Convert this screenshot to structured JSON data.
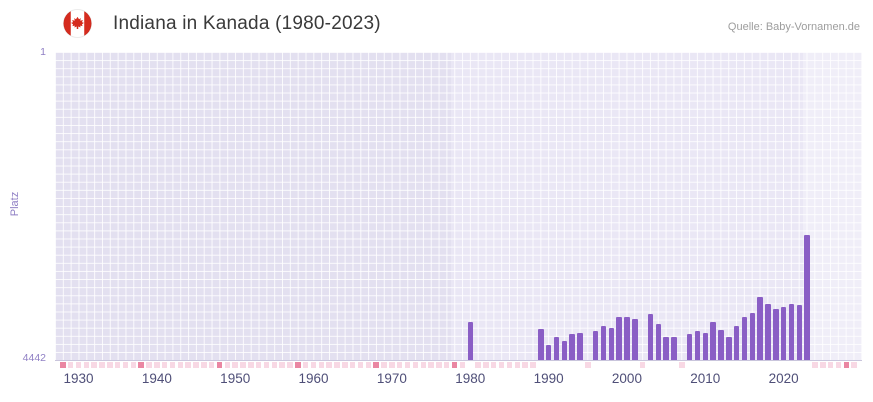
{
  "header": {
    "title": "Indiana in Kanada (1980-2023)",
    "source": "Quelle: Baby-Vornamen.de",
    "flag_icon": "canada-flag-icon",
    "flag_color": "#d52b1e"
  },
  "chart_data": {
    "type": "bar",
    "title": "Indiana in Kanada (1980-2023)",
    "xlabel": "",
    "ylabel": "Platz",
    "y_axis": {
      "top_label": "1",
      "bottom_label": "4442"
    },
    "ylim": [
      1,
      4442
    ],
    "y_inverted": true,
    "xlim": [
      1927,
      2030
    ],
    "x_ticks": [
      1930,
      1940,
      1950,
      1960,
      1970,
      1980,
      1990,
      2000,
      2010,
      2020
    ],
    "grid": true,
    "legend": "none",
    "bar_color": "#8a5ec5",
    "plot_bands": [
      {
        "from": 1927,
        "to": 1977.5,
        "color": "#e3e0f0"
      },
      {
        "from": 1977.5,
        "to": 2022.5,
        "color": "#eae7f5"
      },
      {
        "from": 2022.5,
        "to": 2030,
        "color": "#f0eef8"
      }
    ],
    "series": [
      {
        "name": "Platz",
        "points": [
          {
            "year": 1980,
            "rank": 3890
          },
          {
            "year": 1989,
            "rank": 3990
          },
          {
            "year": 1990,
            "rank": 4230
          },
          {
            "year": 1991,
            "rank": 4110
          },
          {
            "year": 1992,
            "rank": 4170
          },
          {
            "year": 1993,
            "rank": 4060
          },
          {
            "year": 1994,
            "rank": 4050
          },
          {
            "year": 1996,
            "rank": 4020
          },
          {
            "year": 1997,
            "rank": 3950
          },
          {
            "year": 1998,
            "rank": 3980
          },
          {
            "year": 1999,
            "rank": 3820
          },
          {
            "year": 2000,
            "rank": 3820
          },
          {
            "year": 2001,
            "rank": 3850
          },
          {
            "year": 2003,
            "rank": 3780
          },
          {
            "year": 2004,
            "rank": 3920
          },
          {
            "year": 2005,
            "rank": 4110
          },
          {
            "year": 2006,
            "rank": 4110
          },
          {
            "year": 2008,
            "rank": 4060
          },
          {
            "year": 2009,
            "rank": 4020
          },
          {
            "year": 2010,
            "rank": 4050
          },
          {
            "year": 2011,
            "rank": 3890
          },
          {
            "year": 2012,
            "rank": 4010
          },
          {
            "year": 2013,
            "rank": 4110
          },
          {
            "year": 2014,
            "rank": 3950
          },
          {
            "year": 2015,
            "rank": 3820
          },
          {
            "year": 2016,
            "rank": 3760
          },
          {
            "year": 2017,
            "rank": 3530
          },
          {
            "year": 2018,
            "rank": 3630
          },
          {
            "year": 2019,
            "rank": 3710
          },
          {
            "year": 2020,
            "rank": 3680
          },
          {
            "year": 2021,
            "rank": 3630
          },
          {
            "year": 2022,
            "rank": 3650
          },
          {
            "year": 2023,
            "rank": 2640
          }
        ]
      }
    ],
    "no_data_markers": {
      "light_color": "#f8d8e4",
      "dark_color": "#ea86a2",
      "light_years": [
        1929,
        1930,
        1931,
        1932,
        1933,
        1934,
        1935,
        1936,
        1937,
        1939,
        1940,
        1941,
        1942,
        1943,
        1944,
        1945,
        1946,
        1947,
        1949,
        1950,
        1951,
        1952,
        1953,
        1954,
        1955,
        1956,
        1957,
        1959,
        1960,
        1961,
        1962,
        1963,
        1964,
        1965,
        1966,
        1967,
        1969,
        1970,
        1971,
        1972,
        1973,
        1974,
        1975,
        1976,
        1977,
        1979,
        1981,
        1982,
        1983,
        1984,
        1985,
        1986,
        1987,
        1988,
        1995,
        2002,
        2007,
        2024,
        2025,
        2026,
        2027,
        2029
      ],
      "dark_years": [
        1928,
        1938,
        1948,
        1958,
        1968,
        1978,
        2028
      ]
    }
  }
}
